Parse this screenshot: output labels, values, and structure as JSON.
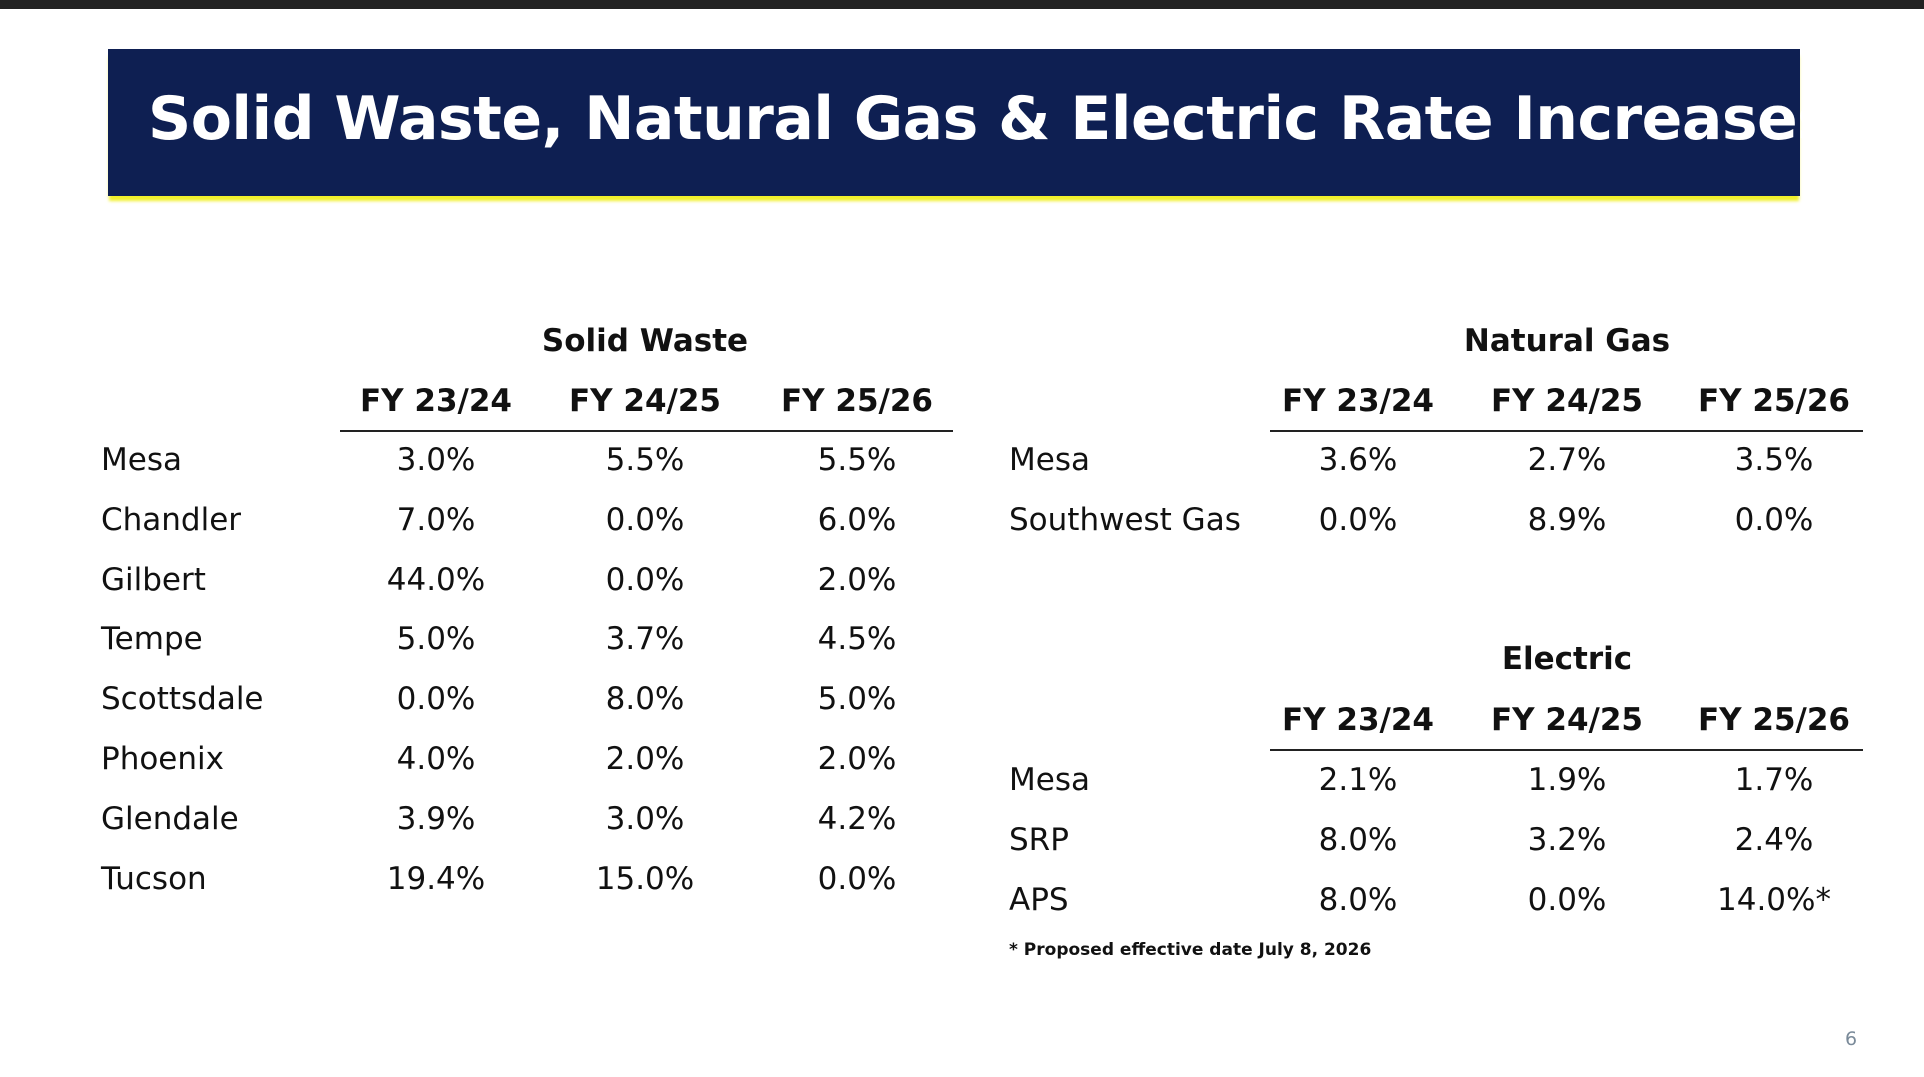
{
  "title": "Solid Waste, Natural Gas & Electric Rate Increases",
  "solid_waste": {
    "title": "Solid Waste",
    "headers": [
      "FY 23/24",
      "FY 24/25",
      "FY 25/26"
    ],
    "rows": [
      [
        "Mesa",
        "3.0%",
        "5.5%",
        "5.5%"
      ],
      [
        "Chandler",
        "7.0%",
        "0.0%",
        "6.0%"
      ],
      [
        "Gilbert",
        "44.0%",
        "0.0%",
        "2.0%"
      ],
      [
        "Tempe",
        "5.0%",
        "3.7%",
        "4.5%"
      ],
      [
        "Scottsdale",
        "0.0%",
        "8.0%",
        "5.0%"
      ],
      [
        "Phoenix",
        "4.0%",
        "2.0%",
        "2.0%"
      ],
      [
        "Glendale",
        "3.9%",
        "3.0%",
        "4.2%"
      ],
      [
        "Tucson",
        "19.4%",
        "15.0%",
        "0.0%"
      ]
    ]
  },
  "natural_gas": {
    "title": "Natural Gas",
    "headers": [
      "FY 23/24",
      "FY 24/25",
      "FY 25/26"
    ],
    "rows": [
      [
        "Mesa",
        "3.6%",
        "2.7%",
        "3.5%"
      ],
      [
        "Southwest Gas",
        "0.0%",
        "8.9%",
        "0.0%"
      ]
    ]
  },
  "electric": {
    "title": "Electric",
    "headers": [
      "FY 23/24",
      "FY 24/25",
      "FY 25/26"
    ],
    "rows": [
      [
        "Mesa",
        "2.1%",
        "1.9%",
        "1.7%"
      ],
      [
        "SRP",
        "8.0%",
        "3.2%",
        "2.4%"
      ],
      [
        "APS",
        "8.0%",
        "0.0%",
        "14.0%*"
      ]
    ]
  },
  "footnote": "* Proposed effective date July 8, 2026",
  "page_number": "6"
}
